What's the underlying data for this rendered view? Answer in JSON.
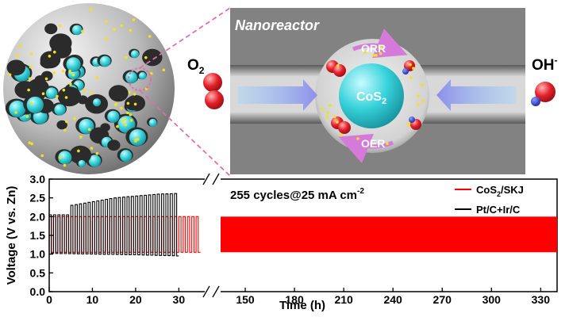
{
  "illustration": {
    "panel_title": "Nanoreactor",
    "core_label_main": "CoS",
    "core_label_sub": "2",
    "top_reaction": "ORR",
    "bottom_reaction": "OER",
    "left_species_main": "O",
    "left_species_sub": "2",
    "right_species_main": "OH",
    "right_species_sup": "-",
    "colors": {
      "panel_bg": "#828282",
      "cavity": "#e6e6e6",
      "core": "#35d0d8",
      "arrow": "#a7b8ee",
      "reaction_arrow": "#d57ad8",
      "oxygen": "#e4202a",
      "nitrogen": "#1b2fc8",
      "zoom_line": "#e070a8"
    }
  },
  "chart_data": {
    "type": "line",
    "ylabel": "Voltage (V vs. Zn)",
    "xlabel": "Time (h)",
    "annotation": "255 cycles@25 mA cm",
    "annotation_sup": "-2",
    "ylim": [
      0.0,
      3.0
    ],
    "yticks": [
      "0.0",
      "0.5",
      "1.0",
      "1.5",
      "2.0",
      "2.5",
      "3.0"
    ],
    "x_left_ticks": [
      "0",
      "10",
      "20",
      "30"
    ],
    "x_right_ticks": [
      "150",
      "180",
      "210",
      "240",
      "270",
      "300",
      "330"
    ],
    "x_left_range": [
      0,
      36
    ],
    "x_right_range": [
      135,
      340
    ],
    "legend_position": "top-right",
    "series": [
      {
        "name": "CoS2/SKJ",
        "legend_main": "CoS",
        "legend_sub": "2",
        "legend_rest": "/SKJ",
        "color": "#ff0000",
        "charge_V": 2.0,
        "discharge_V": 1.05,
        "segments": [
          [
            0,
            35
          ],
          [
            135,
            340
          ]
        ]
      },
      {
        "name": "Pt/C+Ir/C",
        "legend_main": "Pt/C+Ir/C",
        "color": "#000000",
        "charge_V": [
          2.05,
          2.05,
          2.3,
          2.4,
          2.5,
          2.55,
          2.6,
          2.62
        ],
        "charge_V_at_h": [
          0,
          4,
          5,
          10,
          15,
          20,
          25,
          30
        ],
        "discharge_V": [
          1.02,
          1.0,
          0.98,
          0.95
        ],
        "discharge_V_at_h": [
          0,
          10,
          20,
          30
        ],
        "segments": [
          [
            0,
            30
          ]
        ]
      }
    ]
  }
}
